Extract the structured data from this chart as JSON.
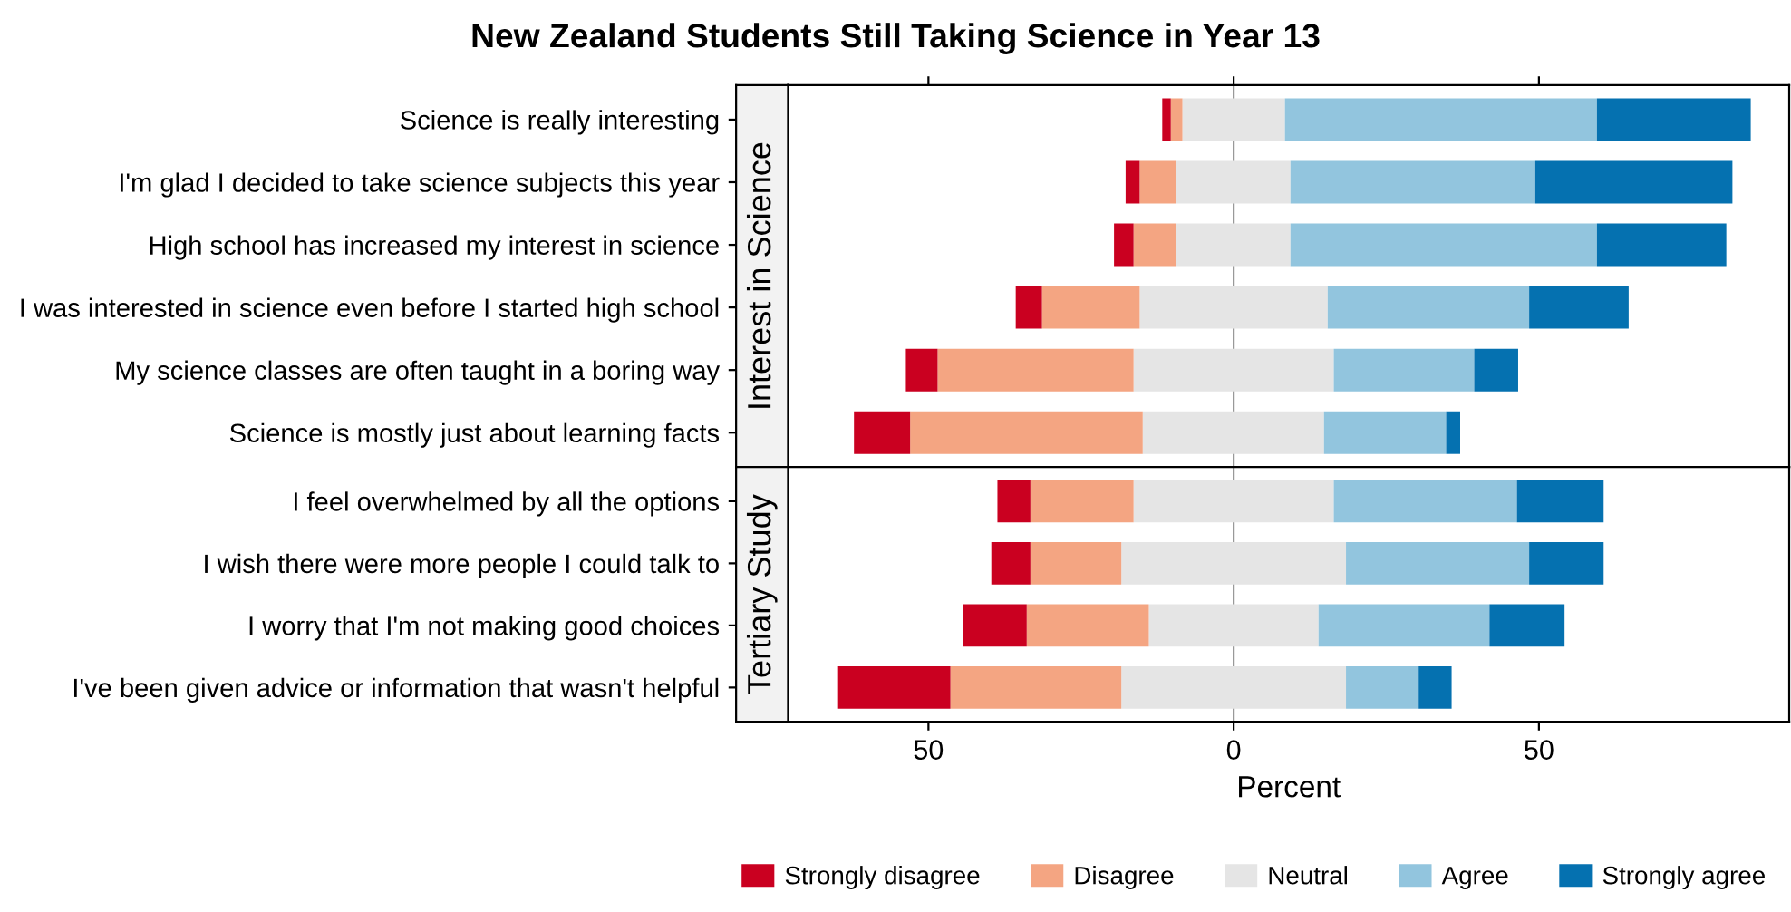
{
  "chart_data": [
    {
      "type": "bar",
      "title": "New Zealand Students Still Taking Science in Year 13",
      "ylabel": "Interest in Science",
      "orientation": "horizontal",
      "stacked": true,
      "categories": [
        "Science is really interesting",
        "I'm glad I decided to take science subjects this year",
        "High school has increased my interest in science",
        "I was interested in science even before I started high school",
        "My science classes are often taught in a boring way",
        "Science is mostly just about learning facts"
      ],
      "series": [
        {
          "name": "Neutral",
          "color": "#e5e5e5",
          "values": [
            -8.4,
            -9.5,
            -9.5,
            -15.4,
            -16.4,
            -14.9
          ]
        },
        {
          "color": "#e5e5e5",
          "values": [
            8.4,
            9.3,
            9.3,
            15.4,
            16.4,
            14.8
          ]
        },
        {
          "name": "Disagree",
          "color": "#f4a582",
          "values": [
            -1.9,
            -5.9,
            -6.9,
            -16.0,
            -32.1,
            -38.1
          ]
        },
        {
          "name": "Agree",
          "color": "#92c5de",
          "values": [
            51.1,
            40.1,
            50.2,
            33.0,
            23.0,
            20.0
          ]
        },
        {
          "name": "Strongly disagree",
          "color": "#ca0020",
          "values": [
            -1.4,
            -2.3,
            -3.2,
            -4.3,
            -5.2,
            -9.2
          ]
        },
        {
          "name": "Strongly agree",
          "color": "#0571b0",
          "values": [
            25.2,
            32.3,
            21.2,
            16.3,
            7.2,
            2.3
          ]
        }
      ],
      "xlim": [
        -73,
        91
      ],
      "xticks": [
        {
          "value": -50,
          "label": null
        },
        {
          "value": 0,
          "label": null
        },
        {
          "value": 50,
          "label": null
        }
      ],
      "tick_labels": "y",
      "ref_lines": [
        {
          "axis": "x",
          "value": 0,
          "color": "#999999"
        }
      ],
      "legend": "bottom"
    },
    {
      "type": "bar",
      "ylabel": "Tertiary Study",
      "xlabel": "Percent",
      "orientation": "horizontal",
      "stacked": true,
      "categories": [
        "I feel overwhelmed by all the options",
        "I wish there were more people I could talk to",
        "I worry that I'm not making good choices",
        "I've been given advice or information that wasn't helpful"
      ],
      "series": [
        {
          "color": "#e5e5e5",
          "values": [
            -16.4,
            -18.4,
            -13.9,
            -18.4
          ]
        },
        {
          "color": "#e5e5e5",
          "values": [
            16.4,
            18.4,
            13.9,
            18.4
          ]
        },
        {
          "color": "#f4a582",
          "values": [
            -16.9,
            -14.9,
            -20.0,
            -28.0
          ]
        },
        {
          "color": "#92c5de",
          "values": [
            30.0,
            30.0,
            28.0,
            11.9
          ]
        },
        {
          "color": "#ca0020",
          "values": [
            -5.4,
            -6.4,
            -10.4,
            -18.4
          ]
        },
        {
          "color": "#0571b0",
          "values": [
            14.2,
            12.2,
            12.3,
            5.4
          ]
        }
      ],
      "xlim": [
        -73,
        91
      ],
      "xticks": [
        {
          "value": -50,
          "label": "50"
        },
        0,
        50
      ],
      "ref_lines": [
        {
          "axis": "x",
          "value": 0,
          "color": "#999999"
        }
      ]
    }
  ]
}
